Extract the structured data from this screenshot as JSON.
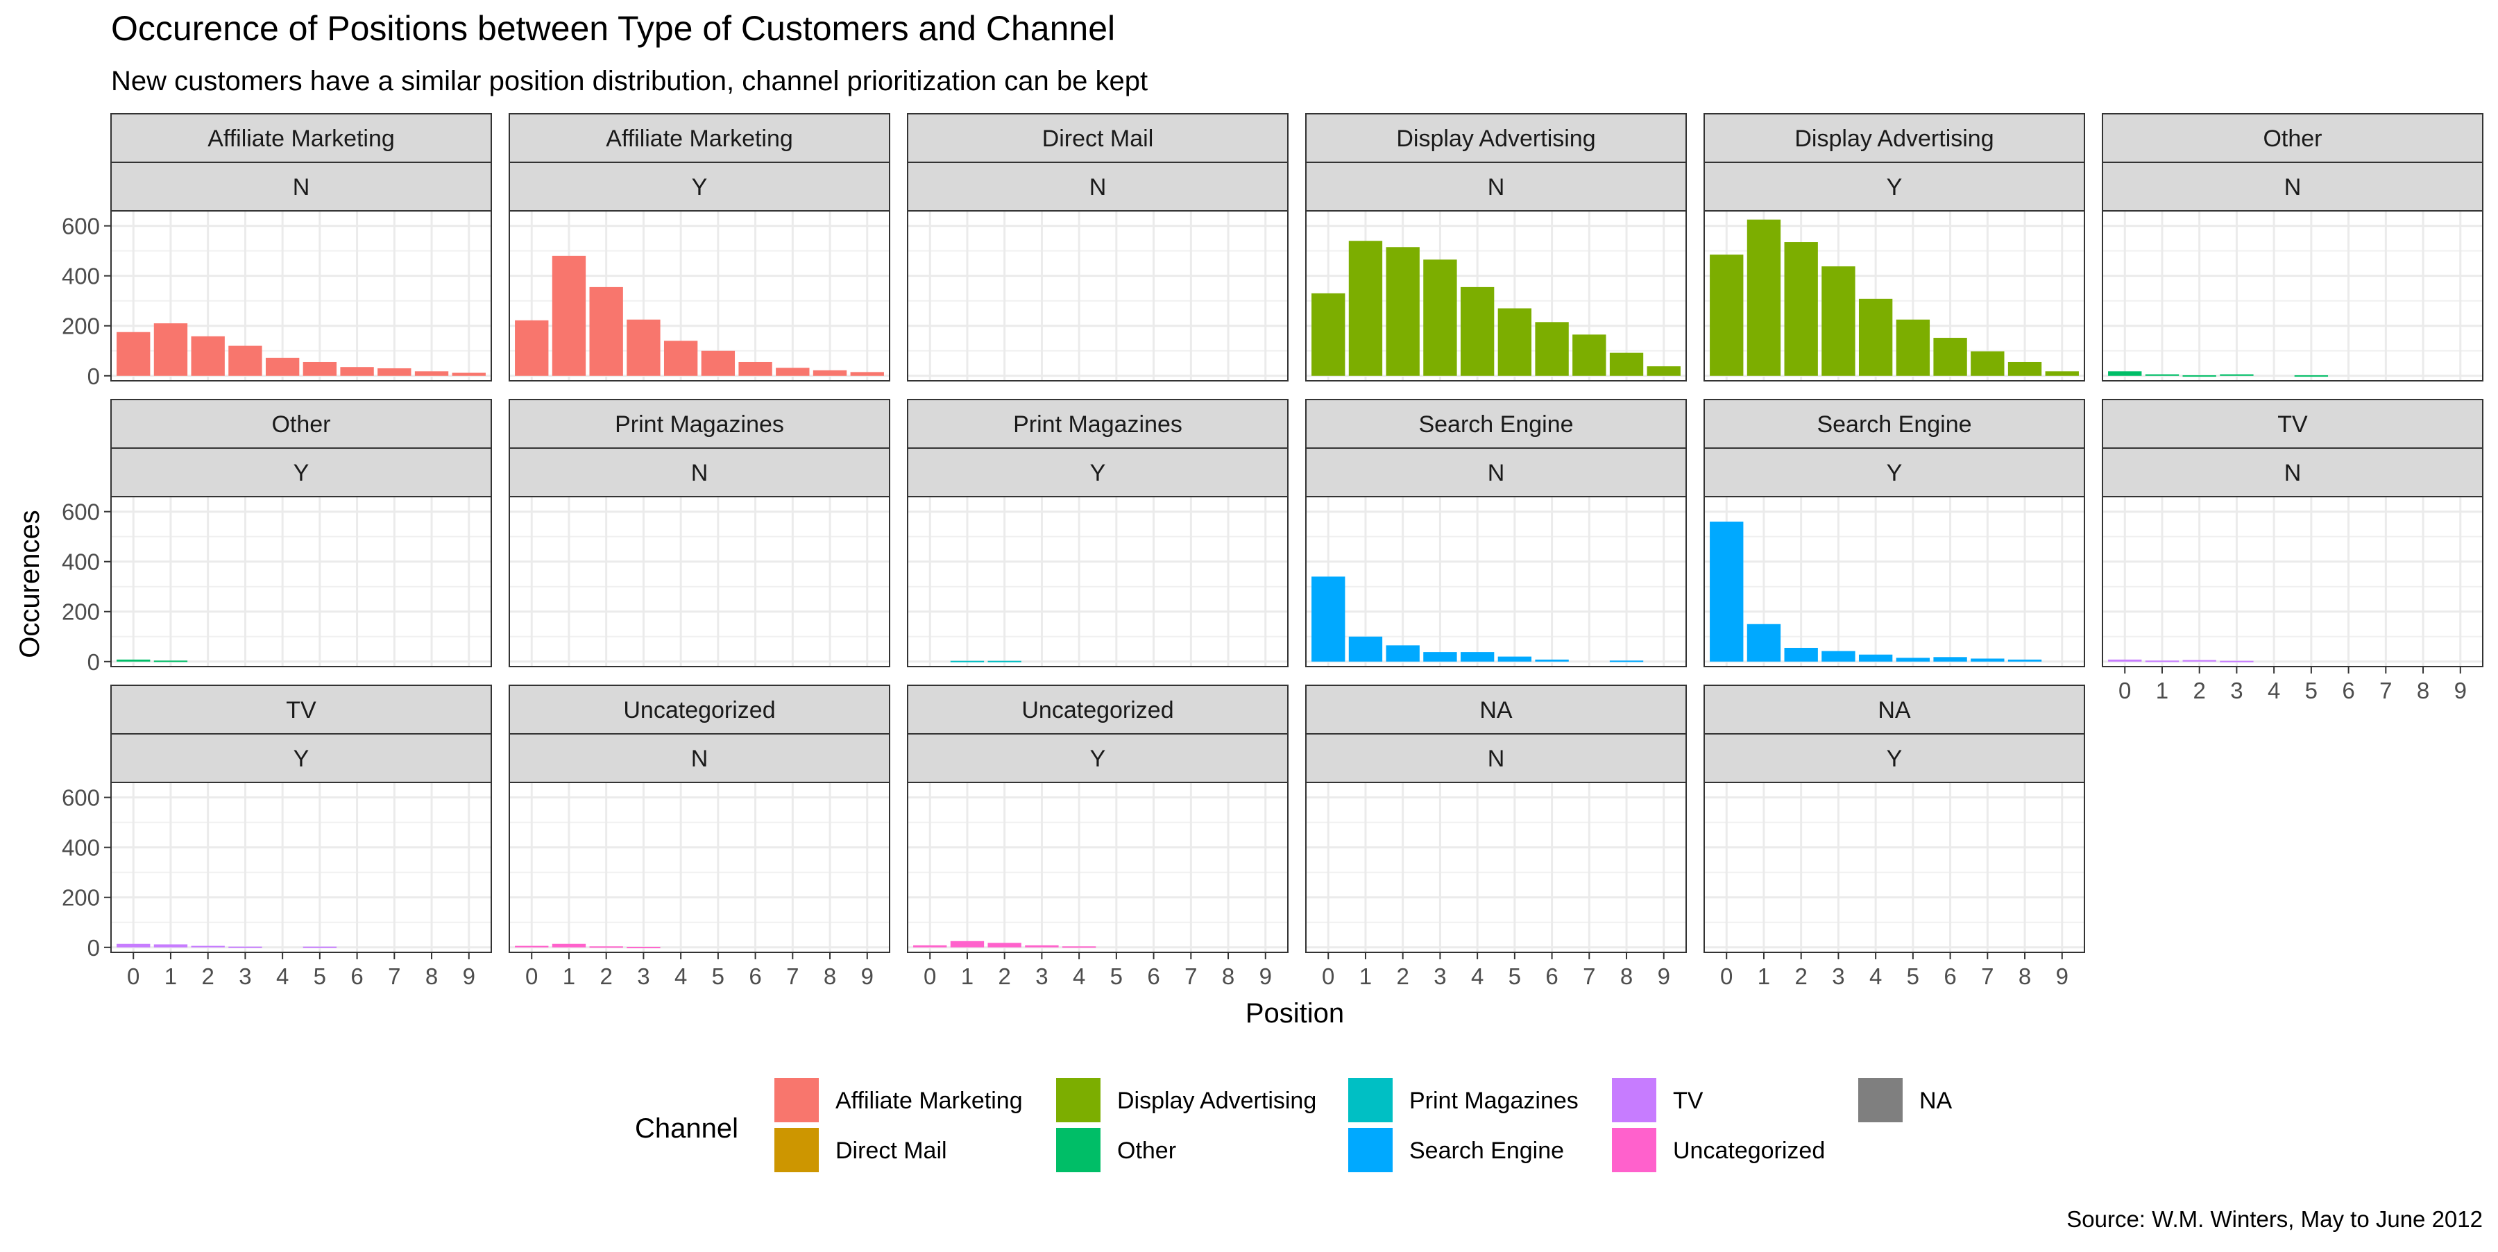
{
  "chart_data": {
    "type": "bar",
    "title": "Occurence of Positions between Type of Customers and Channel",
    "subtitle": "New customers have a similar position distribution, channel prioritization can be kept",
    "xlabel": "Position",
    "ylabel": "Occurences",
    "caption": "Source: W.M. Winters, May to June 2012",
    "categories": [
      "0",
      "1",
      "2",
      "3",
      "4",
      "5",
      "6",
      "7",
      "8",
      "9"
    ],
    "yticks": [
      0,
      200,
      400,
      600
    ],
    "ylim": [
      -20,
      660
    ],
    "grid": true,
    "legend": {
      "title": "Channel",
      "position": "bottom",
      "entries": [
        {
          "name": "Affiliate Marketing",
          "color": "#F8766D"
        },
        {
          "name": "Direct Mail",
          "color": "#CD9600"
        },
        {
          "name": "Display Advertising",
          "color": "#7CAE00"
        },
        {
          "name": "Other",
          "color": "#00BE67"
        },
        {
          "name": "Print Magazines",
          "color": "#00BFC4"
        },
        {
          "name": "Search Engine",
          "color": "#00A9FF"
        },
        {
          "name": "TV",
          "color": "#C77CFF"
        },
        {
          "name": "Uncategorized",
          "color": "#FF61CC"
        },
        {
          "name": "NA",
          "color": "#7F7F7F"
        }
      ]
    },
    "facets": [
      {
        "channel": "Affiliate Marketing",
        "new": "N",
        "color": "#F8766D",
        "values": [
          175,
          210,
          158,
          120,
          72,
          55,
          35,
          30,
          18,
          12
        ]
      },
      {
        "channel": "Affiliate Marketing",
        "new": "Y",
        "color": "#F8766D",
        "values": [
          222,
          480,
          355,
          225,
          140,
          100,
          55,
          32,
          22,
          15
        ]
      },
      {
        "channel": "Direct Mail",
        "new": "N",
        "color": "#CD9600",
        "values": [
          0,
          0,
          0,
          0,
          0,
          0,
          0,
          0,
          0,
          0
        ]
      },
      {
        "channel": "Display Advertising",
        "new": "N",
        "color": "#7CAE00",
        "values": [
          330,
          540,
          515,
          465,
          355,
          270,
          215,
          165,
          92,
          38
        ]
      },
      {
        "channel": "Display Advertising",
        "new": "Y",
        "color": "#7CAE00",
        "values": [
          485,
          625,
          535,
          438,
          308,
          225,
          152,
          98,
          55,
          18
        ]
      },
      {
        "channel": "Other",
        "new": "N",
        "color": "#00BE67",
        "values": [
          18,
          6,
          2,
          6,
          0,
          2,
          0,
          0,
          0,
          0
        ]
      },
      {
        "channel": "Other",
        "new": "Y",
        "color": "#00BE67",
        "values": [
          8,
          4,
          0,
          0,
          0,
          0,
          0,
          0,
          0,
          0
        ]
      },
      {
        "channel": "Print Magazines",
        "new": "N",
        "color": "#00BFC4",
        "values": [
          0,
          0,
          0,
          0,
          0,
          0,
          0,
          0,
          0,
          0
        ]
      },
      {
        "channel": "Print Magazines",
        "new": "Y",
        "color": "#00BFC4",
        "values": [
          0,
          3,
          3,
          0,
          0,
          0,
          0,
          0,
          0,
          0
        ]
      },
      {
        "channel": "Search Engine",
        "new": "N",
        "color": "#00A9FF",
        "values": [
          340,
          100,
          65,
          38,
          38,
          20,
          8,
          0,
          4,
          0
        ]
      },
      {
        "channel": "Search Engine",
        "new": "Y",
        "color": "#00A9FF",
        "values": [
          560,
          150,
          55,
          42,
          28,
          15,
          18,
          12,
          8,
          0
        ]
      },
      {
        "channel": "TV",
        "new": "N",
        "color": "#C77CFF",
        "values": [
          8,
          4,
          6,
          3,
          0,
          0,
          0,
          0,
          0,
          0
        ]
      },
      {
        "channel": "TV",
        "new": "Y",
        "color": "#C77CFF",
        "values": [
          14,
          12,
          6,
          3,
          0,
          3,
          0,
          0,
          0,
          0
        ]
      },
      {
        "channel": "Uncategorized",
        "new": "N",
        "color": "#FF61CC",
        "values": [
          6,
          14,
          4,
          2,
          0,
          0,
          0,
          0,
          0,
          0
        ]
      },
      {
        "channel": "Uncategorized",
        "new": "Y",
        "color": "#FF61CC",
        "values": [
          8,
          25,
          18,
          8,
          4,
          0,
          0,
          0,
          0,
          0
        ]
      },
      {
        "channel": "NA",
        "new": "N",
        "color": "#7F7F7F",
        "values": [
          0,
          0,
          0,
          0,
          0,
          0,
          0,
          0,
          0,
          0
        ]
      },
      {
        "channel": "NA",
        "new": "Y",
        "color": "#7F7F7F",
        "values": [
          0,
          0,
          0,
          0,
          0,
          0,
          0,
          0,
          0,
          0
        ]
      }
    ]
  }
}
